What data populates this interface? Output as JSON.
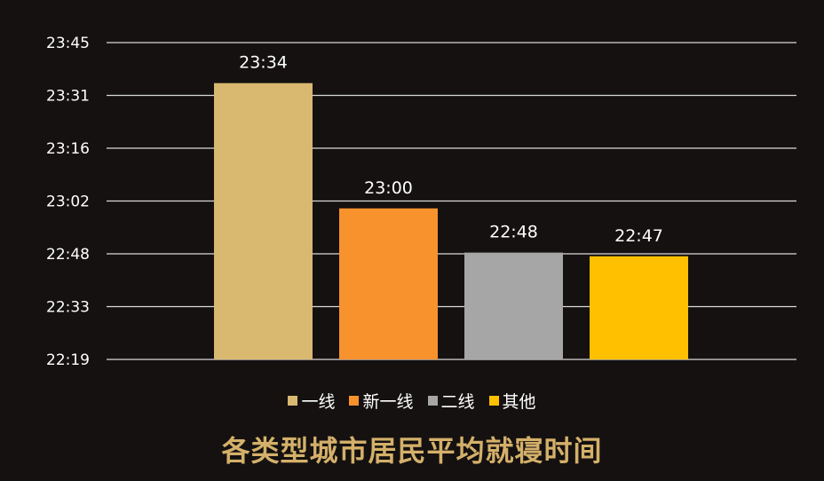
{
  "chart_data": {
    "type": "bar",
    "title": "各类型城市居民平均就寝时间",
    "categories": [
      "一线",
      "新一线",
      "二线",
      "其他"
    ],
    "values": [
      "23:34",
      "23:00",
      "22:48",
      "22:47"
    ],
    "value_labels": [
      "23:34",
      "23:00",
      "22:48",
      "22:47"
    ],
    "colors": [
      "#d9b870",
      "#f7922d",
      "#a6a6a6",
      "#ffc000"
    ],
    "y_ticks": [
      "23:45",
      "23:31",
      "23:16",
      "23:02",
      "22:48",
      "22:33",
      "22:19"
    ],
    "ylim": [
      "22:19",
      "23:45"
    ],
    "grid": true,
    "legend_position": "bottom"
  }
}
